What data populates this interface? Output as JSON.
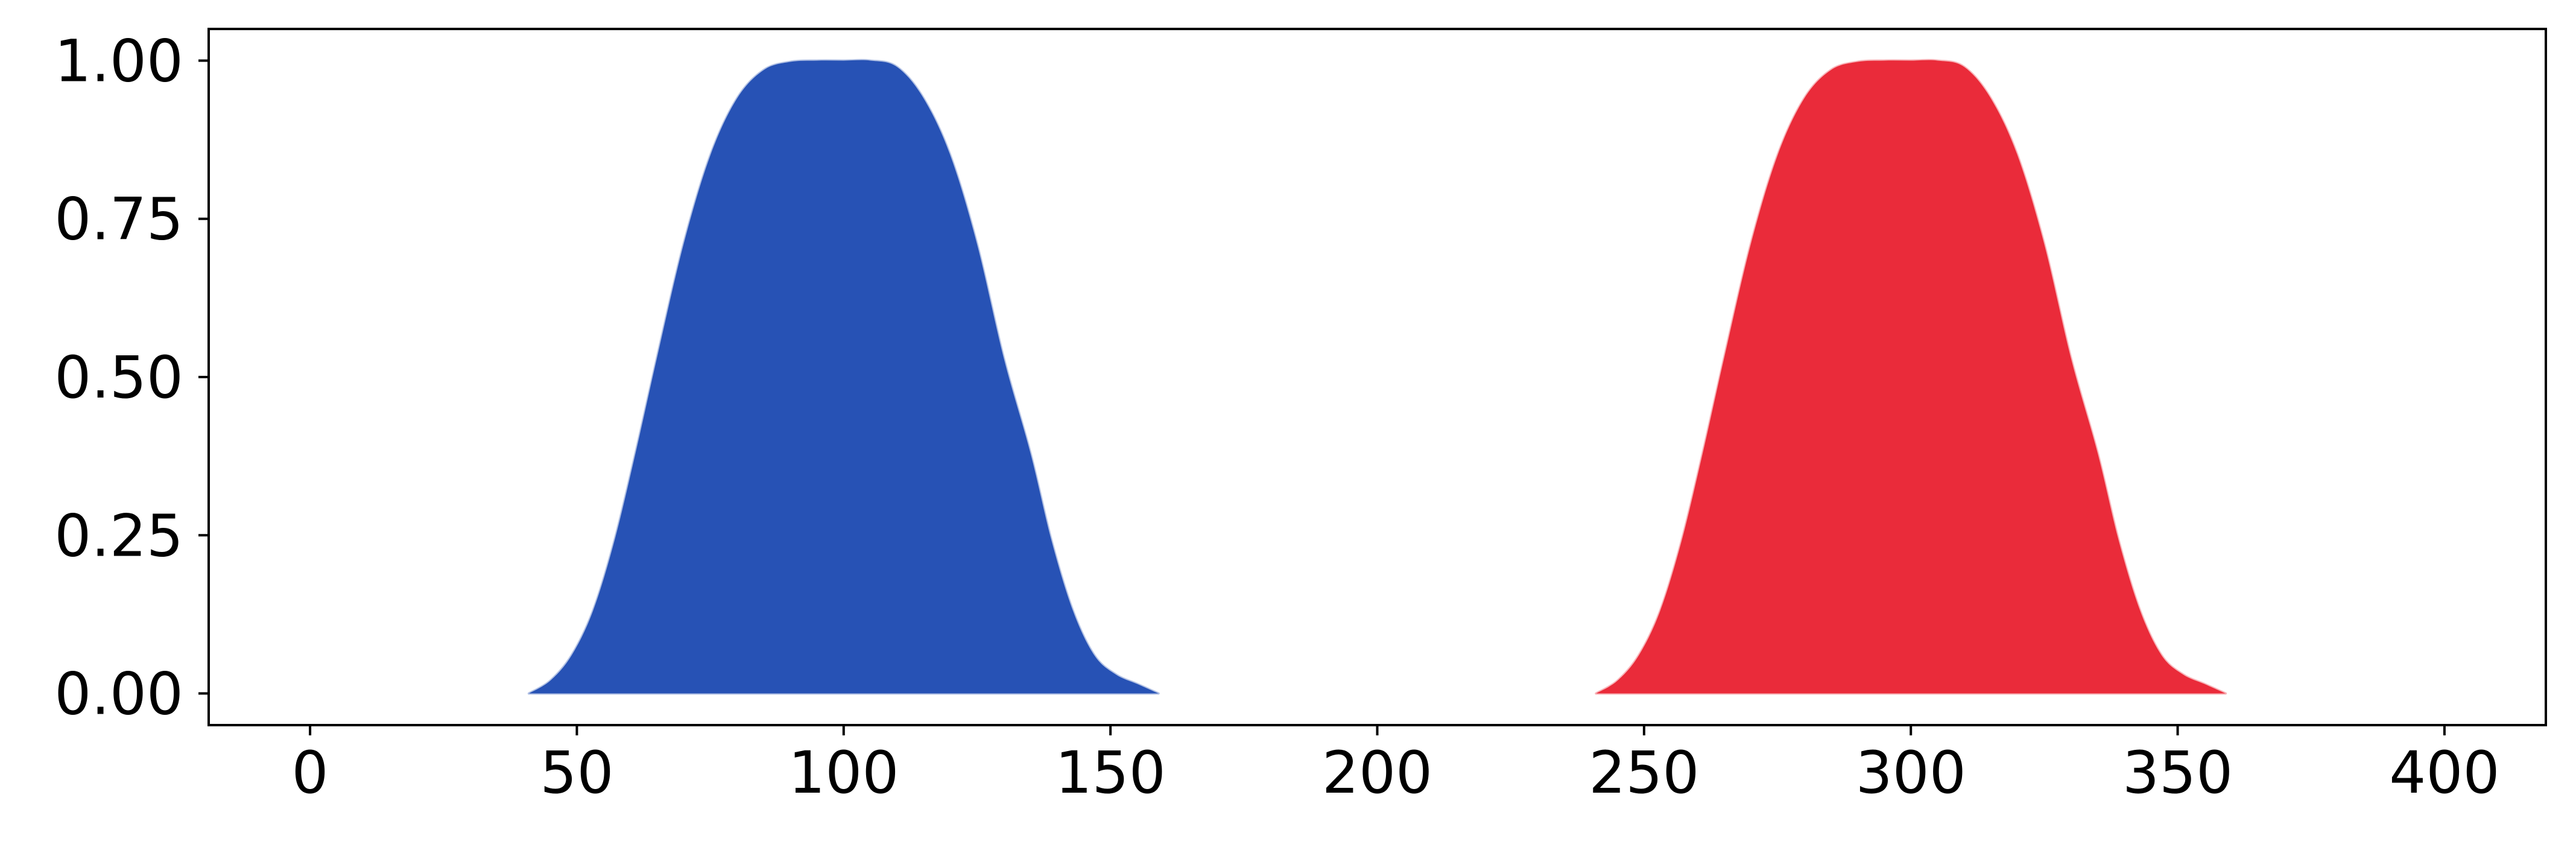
{
  "chart_data": {
    "type": "area",
    "title": "",
    "xlabel": "",
    "ylabel": "",
    "xlim": [
      -19,
      419
    ],
    "ylim": [
      -0.05,
      1.05
    ],
    "grid": false,
    "legend": "none",
    "x_ticks": [
      0,
      50,
      100,
      150,
      200,
      250,
      300,
      350,
      400
    ],
    "x_tick_labels": [
      "0",
      "50",
      "100",
      "150",
      "200",
      "250",
      "300",
      "350",
      "400"
    ],
    "y_ticks": [
      0.0,
      0.25,
      0.5,
      0.75,
      1.0
    ],
    "y_tick_labels": [
      "0.00",
      "0.25",
      "0.50",
      "0.75",
      "1.00"
    ],
    "series": [
      {
        "color": "#2752b5",
        "x": [
          41,
          45,
          49,
          53,
          57,
          61,
          65,
          70,
          75,
          80,
          85,
          90,
          95,
          100,
          105,
          110,
          115,
          120,
          125,
          130,
          135,
          139,
          143,
          147,
          151,
          155,
          159
        ],
        "y": [
          0.0,
          0.02,
          0.06,
          0.13,
          0.24,
          0.38,
          0.53,
          0.71,
          0.85,
          0.94,
          0.985,
          0.998,
          1.0,
          1.0,
          1.0,
          0.99,
          0.94,
          0.85,
          0.71,
          0.53,
          0.38,
          0.24,
          0.13,
          0.06,
          0.03,
          0.015,
          0.0
        ]
      },
      {
        "color": "#ea2b3a",
        "x": [
          241,
          245,
          249,
          253,
          257,
          261,
          265,
          270,
          275,
          280,
          285,
          290,
          295,
          300,
          305,
          310,
          315,
          320,
          325,
          330,
          335,
          339,
          343,
          347,
          351,
          355,
          359
        ],
        "y": [
          0.0,
          0.02,
          0.06,
          0.13,
          0.24,
          0.38,
          0.53,
          0.71,
          0.85,
          0.94,
          0.985,
          0.998,
          1.0,
          1.0,
          1.0,
          0.99,
          0.94,
          0.85,
          0.71,
          0.53,
          0.38,
          0.24,
          0.13,
          0.06,
          0.03,
          0.015,
          0.0
        ]
      }
    ]
  },
  "style": {
    "axis_color": "#000000",
    "background": "#ffffff"
  }
}
